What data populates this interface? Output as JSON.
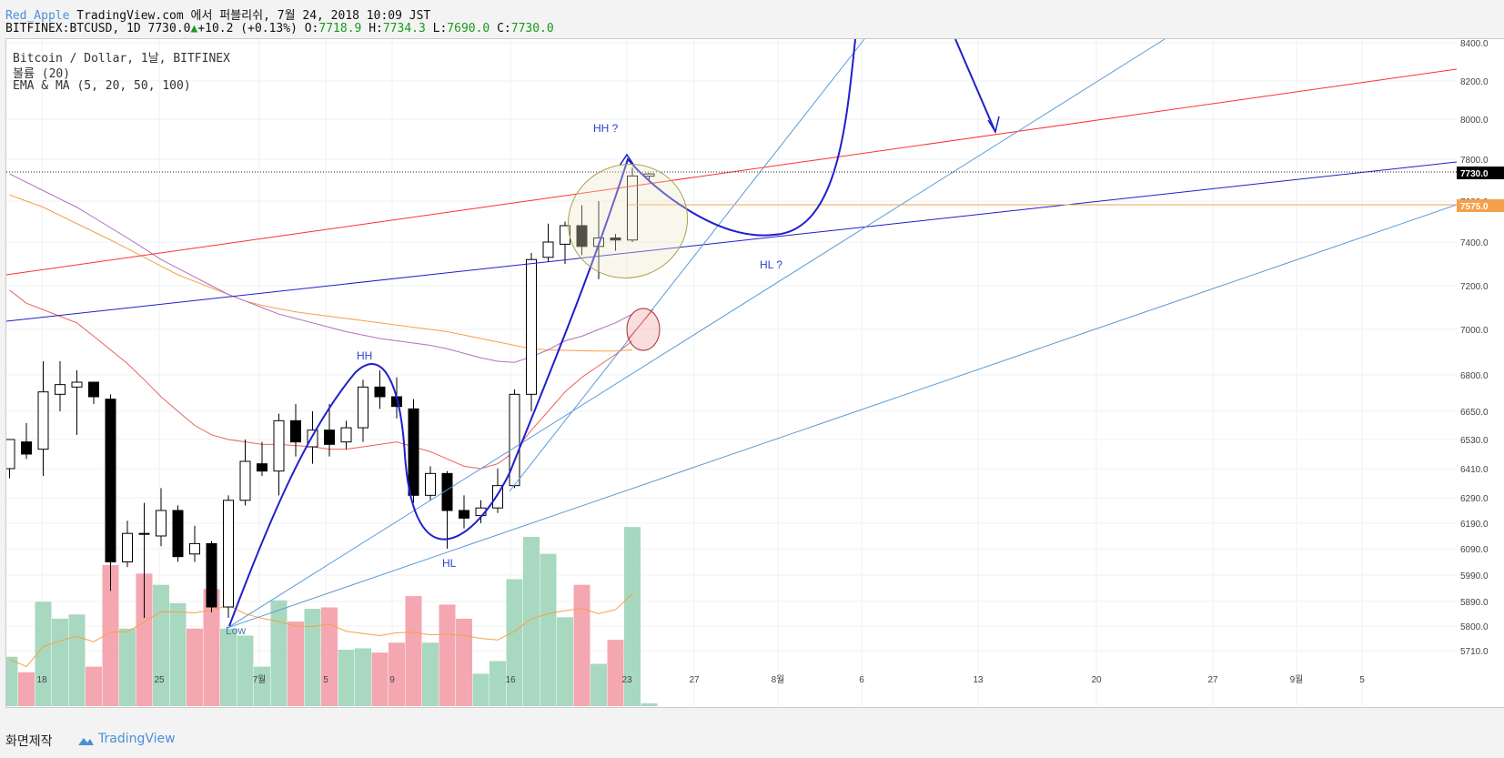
{
  "header": {
    "username": "Red_Apple",
    "published": "TradingView.com 에서 퍼블리쉬, 7월 24, 2018 10:09 JST",
    "symbol_line": "BITFINEX:BTCUSD, 1D 7730.0",
    "change": "+10.2 (+0.13%)",
    "o_label": "O:",
    "o_value": "7718.9",
    "h_label": "H:",
    "h_value": "7734.3",
    "l_label": "L:",
    "l_value": "7690.0",
    "c_label": "C:",
    "c_value": "7730.0"
  },
  "legend": {
    "title": "Bitcoin / Dollar, 1날, BITFINEX",
    "volume": "볼륨 (20)",
    "ma": "EMA & MA (5, 20, 50, 100)"
  },
  "footer": {
    "made": "화면제작",
    "brand": "TradingView"
  },
  "colors": {
    "up": "#ffffff",
    "down": "#000000",
    "volUp": "#a8d8c0",
    "volDown": "#f4a7b0",
    "trendBlue": "#1f1fcc",
    "trendRed": "#ff3030",
    "lightBlue": "#5b9bd5",
    "orangeMA": "#f5a04a",
    "purpleMA": "#b070c0",
    "redMA": "#f06060"
  },
  "chart_data": {
    "type": "candlestick",
    "title": "Bitcoin / Dollar, 1날, BITFINEX",
    "last_price": "7730.0",
    "level_price": "7575.0",
    "y_ticks": [
      "8400.0",
      "8200.0",
      "8000.0",
      "7800.0",
      "7600.0",
      "7400.0",
      "7200.0",
      "7000.0",
      "6800.0",
      "6650.0",
      "6530.0",
      "6410.0",
      "6290.0",
      "6190.0",
      "6090.0",
      "5990.0",
      "5890.0",
      "5800.0",
      "5710.0"
    ],
    "x_ticks": [
      "18",
      "25",
      "7월",
      "5",
      "9",
      "16",
      "23",
      "27",
      "8월",
      "6",
      "13",
      "20",
      "27",
      "9월",
      "5"
    ],
    "candles": [
      {
        "o": 6410,
        "h": 6530,
        "l": 6370,
        "c": 6530
      },
      {
        "o": 6520,
        "h": 6600,
        "l": 6450,
        "c": 6470
      },
      {
        "o": 6490,
        "h": 6860,
        "l": 6380,
        "c": 6730
      },
      {
        "o": 6720,
        "h": 6860,
        "l": 6650,
        "c": 6760
      },
      {
        "o": 6750,
        "h": 6820,
        "l": 6550,
        "c": 6770
      },
      {
        "o": 6770,
        "h": 6760,
        "l": 6680,
        "c": 6710
      },
      {
        "o": 6700,
        "h": 6720,
        "l": 5930,
        "c": 6040
      },
      {
        "o": 6040,
        "h": 6200,
        "l": 6020,
        "c": 6150
      },
      {
        "o": 6150,
        "h": 6270,
        "l": 5830,
        "c": 6150
      },
      {
        "o": 6140,
        "h": 6330,
        "l": 6100,
        "c": 6240
      },
      {
        "o": 6240,
        "h": 6260,
        "l": 6040,
        "c": 6060
      },
      {
        "o": 6070,
        "h": 6180,
        "l": 6040,
        "c": 6110
      },
      {
        "o": 6110,
        "h": 6120,
        "l": 5850,
        "c": 5870
      },
      {
        "o": 5870,
        "h": 6300,
        "l": 5830,
        "c": 6280
      },
      {
        "o": 6280,
        "h": 6530,
        "l": 6260,
        "c": 6440
      },
      {
        "o": 6430,
        "h": 6520,
        "l": 6380,
        "c": 6400
      },
      {
        "o": 6400,
        "h": 6640,
        "l": 6300,
        "c": 6610
      },
      {
        "o": 6610,
        "h": 6680,
        "l": 6460,
        "c": 6520
      },
      {
        "o": 6500,
        "h": 6650,
        "l": 6430,
        "c": 6570
      },
      {
        "o": 6570,
        "h": 6680,
        "l": 6460,
        "c": 6510
      },
      {
        "o": 6520,
        "h": 6610,
        "l": 6490,
        "c": 6580
      },
      {
        "o": 6580,
        "h": 6780,
        "l": 6520,
        "c": 6750
      },
      {
        "o": 6750,
        "h": 6820,
        "l": 6660,
        "c": 6710
      },
      {
        "o": 6710,
        "h": 6790,
        "l": 6620,
        "c": 6670
      },
      {
        "o": 6660,
        "h": 6700,
        "l": 6270,
        "c": 6300
      },
      {
        "o": 6300,
        "h": 6420,
        "l": 6280,
        "c": 6390
      },
      {
        "o": 6390,
        "h": 6400,
        "l": 6090,
        "c": 6240
      },
      {
        "o": 6240,
        "h": 6300,
        "l": 6170,
        "c": 6210
      },
      {
        "o": 6220,
        "h": 6280,
        "l": 6190,
        "c": 6250
      },
      {
        "o": 6250,
        "h": 6410,
        "l": 6230,
        "c": 6340
      },
      {
        "o": 6340,
        "h": 6740,
        "l": 6330,
        "c": 6720
      },
      {
        "o": 6720,
        "h": 7350,
        "l": 6650,
        "c": 7320
      },
      {
        "o": 7330,
        "h": 7490,
        "l": 7310,
        "c": 7400
      },
      {
        "o": 7390,
        "h": 7500,
        "l": 7300,
        "c": 7480
      },
      {
        "o": 7480,
        "h": 7580,
        "l": 7340,
        "c": 7380
      },
      {
        "o": 7380,
        "h": 7600,
        "l": 7230,
        "c": 7420
      },
      {
        "o": 7420,
        "h": 7440,
        "l": 7360,
        "c": 7410
      },
      {
        "o": 7410,
        "h": 7760,
        "l": 7400,
        "c": 7720
      },
      {
        "o": 7719,
        "h": 7734,
        "l": 7690,
        "c": 7730
      }
    ],
    "volume": [
      {
        "v": 0.35,
        "up": true
      },
      {
        "v": 0.24,
        "up": false
      },
      {
        "v": 0.74,
        "up": true
      },
      {
        "v": 0.62,
        "up": true
      },
      {
        "v": 0.65,
        "up": true
      },
      {
        "v": 0.28,
        "up": false
      },
      {
        "v": 1.0,
        "up": false
      },
      {
        "v": 0.55,
        "up": true
      },
      {
        "v": 0.94,
        "up": false
      },
      {
        "v": 0.86,
        "up": true
      },
      {
        "v": 0.73,
        "up": true
      },
      {
        "v": 0.55,
        "up": false
      },
      {
        "v": 0.83,
        "up": false
      },
      {
        "v": 0.55,
        "up": true
      },
      {
        "v": 0.5,
        "up": true
      },
      {
        "v": 0.28,
        "up": true
      },
      {
        "v": 0.75,
        "up": true
      },
      {
        "v": 0.6,
        "up": false
      },
      {
        "v": 0.69,
        "up": true
      },
      {
        "v": 0.7,
        "up": false
      },
      {
        "v": 0.4,
        "up": true
      },
      {
        "v": 0.41,
        "up": true
      },
      {
        "v": 0.38,
        "up": false
      },
      {
        "v": 0.45,
        "up": false
      },
      {
        "v": 0.78,
        "up": false
      },
      {
        "v": 0.45,
        "up": true
      },
      {
        "v": 0.72,
        "up": false
      },
      {
        "v": 0.62,
        "up": false
      },
      {
        "v": 0.23,
        "up": true
      },
      {
        "v": 0.32,
        "up": true
      },
      {
        "v": 0.9,
        "up": true
      },
      {
        "v": 1.2,
        "up": true
      },
      {
        "v": 1.08,
        "up": true
      },
      {
        "v": 0.63,
        "up": true
      },
      {
        "v": 0.86,
        "up": false
      },
      {
        "v": 0.3,
        "up": true
      },
      {
        "v": 0.47,
        "up": false
      },
      {
        "v": 1.27,
        "up": true
      },
      {
        "v": 0.02,
        "up": true
      }
    ],
    "annotations": [
      "HH",
      "HL",
      "HH ?",
      "HL ?",
      "Low"
    ]
  }
}
